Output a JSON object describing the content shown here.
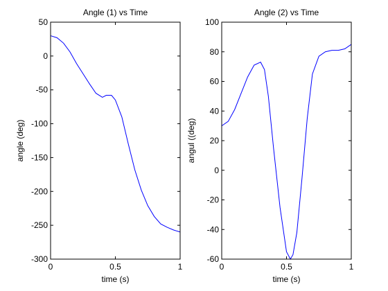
{
  "chart_data": [
    {
      "type": "line",
      "title": "Angle (1) vs Time",
      "xlabel": "time (s)",
      "ylabel": "angle (deg)",
      "xlim": [
        0,
        1
      ],
      "ylim": [
        -300,
        50
      ],
      "xticks": [
        0,
        0.5,
        1
      ],
      "xticklabels": [
        "0",
        "0.5",
        "1"
      ],
      "yticks": [
        50,
        0,
        -50,
        -100,
        -150,
        -200,
        -250,
        -300
      ],
      "yticklabels": [
        "50",
        "0",
        "-50",
        "-100",
        "-150",
        "-200",
        "-250",
        "-300"
      ],
      "grid": false,
      "color": "#0000ff",
      "series": [
        {
          "x": [
            0,
            0.05,
            0.1,
            0.15,
            0.2,
            0.25,
            0.3,
            0.35,
            0.4,
            0.43,
            0.47,
            0.5,
            0.55,
            0.6,
            0.65,
            0.7,
            0.75,
            0.8,
            0.85,
            0.9,
            0.95,
            1.0
          ],
          "y": [
            30,
            27,
            19,
            6,
            -11,
            -26,
            -41,
            -55,
            -61,
            -58,
            -58,
            -65,
            -90,
            -130,
            -168,
            -198,
            -221,
            -237,
            -248,
            -253,
            -257,
            -260
          ]
        }
      ]
    },
    {
      "type": "line",
      "title": "Angle (2) vs Time",
      "xlabel": "time (s)",
      "ylabel": "angul ((deg)",
      "xlim": [
        0,
        1
      ],
      "ylim": [
        -60,
        100
      ],
      "xticks": [
        0,
        0.5,
        1
      ],
      "xticklabels": [
        "0",
        "0.5",
        "1"
      ],
      "yticks": [
        100,
        80,
        60,
        40,
        20,
        0,
        -20,
        -40,
        -60
      ],
      "yticklabels": [
        "100",
        "80",
        "60",
        "40",
        "20",
        "0",
        "-20",
        "-40",
        "-60"
      ],
      "grid": false,
      "color": "#0000ff",
      "series": [
        {
          "x": [
            0,
            0.05,
            0.1,
            0.15,
            0.2,
            0.25,
            0.3,
            0.33,
            0.36,
            0.4,
            0.45,
            0.5,
            0.53,
            0.55,
            0.58,
            0.62,
            0.66,
            0.7,
            0.75,
            0.8,
            0.85,
            0.9,
            0.95,
            1.0
          ],
          "y": [
            30,
            33,
            41,
            52,
            63,
            71,
            73,
            68,
            50,
            15,
            -25,
            -55,
            -60,
            -57,
            -42,
            -5,
            35,
            65,
            77,
            80,
            81,
            81,
            82,
            85
          ]
        }
      ]
    }
  ]
}
